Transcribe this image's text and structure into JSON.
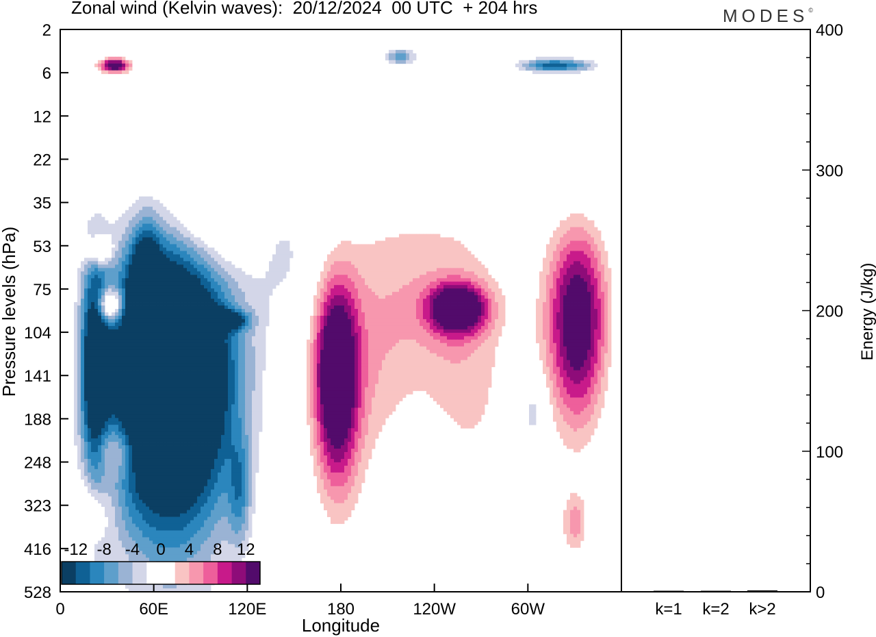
{
  "header": {
    "title": "Zonal wind (Kelvin waves):  20/12/2024  00 UTC  + 204 hrs",
    "brand": "MODES",
    "brand_mark": "©"
  },
  "colors": {
    "neg": [
      "#0b3f63",
      "#0f6195",
      "#2b86bd",
      "#5e9fcb",
      "#9ab3d4",
      "#d3d6e8"
    ],
    "zero": "#ffffff",
    "pos": [
      "#f9c4c3",
      "#f797ae",
      "#ee5f9b",
      "#c81a8a",
      "#8e0c79",
      "#520b6b"
    ]
  },
  "chart_data": [
    {
      "type": "heatmap",
      "title": "Zonal wind (Kelvin waves):  20/12/2024  00 UTC  + 204 hrs",
      "xlabel": "Longitude",
      "ylabel": "Pressure levels (hPa)",
      "x_ticks": [
        "0",
        "60E",
        "120E",
        "180",
        "120W",
        "60W"
      ],
      "y_ticks": [
        "2",
        "6",
        "12",
        "22",
        "35",
        "53",
        "75",
        "104",
        "141",
        "188",
        "248",
        "323",
        "416",
        "528"
      ],
      "colorbar_labels": [
        "-12",
        "-8",
        "-4",
        "0",
        "4",
        "8",
        "12"
      ],
      "levels": [
        -14,
        -12,
        -10,
        -8,
        -6,
        -4,
        -2,
        2,
        4,
        6,
        8,
        10,
        12,
        14
      ],
      "features": [
        {
          "lon": 70,
          "plev": 141,
          "value": -14,
          "plon": 60,
          "pplev": 4.2
        },
        {
          "lon": 102,
          "plev": 95,
          "value": -8,
          "plon": 22,
          "pplev": 1.1
        },
        {
          "lon": 55,
          "plev": 90,
          "value": -7,
          "plon": 12,
          "pplev": 2.4
        },
        {
          "lon": 22,
          "plev": 130,
          "value": -6,
          "plon": 12,
          "pplev": 3.6
        },
        {
          "lon": 230,
          "plev": 118,
          "value": 5,
          "plon": 70,
          "pplev": 5.0
        },
        {
          "lon": 255,
          "plev": 87,
          "value": 8,
          "plon": 26,
          "pplev": 1.3
        },
        {
          "lon": 177,
          "plev": 141,
          "value": 9,
          "plon": 20,
          "pplev": 2.6
        },
        {
          "lon": 332,
          "plev": 95,
          "value": 8,
          "plon": 28,
          "pplev": 2.8
        },
        {
          "lon": 230,
          "plev": 200,
          "value": -3,
          "plon": 40,
          "pplev": 6.0
        },
        {
          "lon": 318,
          "plev": 5,
          "value": -6,
          "plon": 35,
          "pplev": 1.3
        },
        {
          "lon": 218,
          "plev": 4,
          "value": -4,
          "plon": 16,
          "pplev": 1.4
        },
        {
          "lon": 35,
          "plev": 5,
          "value": 8,
          "plon": 14,
          "pplev": 1.3
        },
        {
          "lon": 32,
          "plev": 85,
          "value": 6,
          "plon": 12,
          "pplev": 1.2
        },
        {
          "lon": 25,
          "plev": 55,
          "value": 4,
          "plon": 12,
          "pplev": 1.2
        },
        {
          "lon": 100,
          "plev": 40,
          "value": 3,
          "plon": 40,
          "pplev": 2.0
        },
        {
          "lon": 35,
          "plev": 230,
          "value": 3,
          "plon": 22,
          "pplev": 1.3
        },
        {
          "lon": 20,
          "plev": 330,
          "value": 3,
          "plon": 18,
          "pplev": 1.3
        },
        {
          "lon": 330,
          "plev": 360,
          "value": 3,
          "plon": 12,
          "pplev": 1.3
        },
        {
          "lon": 115,
          "plev": 300,
          "value": -3,
          "plon": 10,
          "pplev": 1.6
        },
        {
          "lon": 145,
          "plev": 55,
          "value": -2,
          "plon": 30,
          "pplev": 2.2
        },
        {
          "lon": 303,
          "plev": 180,
          "value": -3,
          "plon": 12,
          "pplev": 1.4
        }
      ]
    },
    {
      "type": "bar",
      "categories": [
        "k=1",
        "k=2",
        "k>2"
      ],
      "values": [
        0.5,
        0.5,
        1
      ],
      "ylabel": "Energy (J/kg)",
      "ylim": [
        0,
        400
      ],
      "y_ticks": [
        0,
        100,
        200,
        300,
        400
      ]
    }
  ]
}
